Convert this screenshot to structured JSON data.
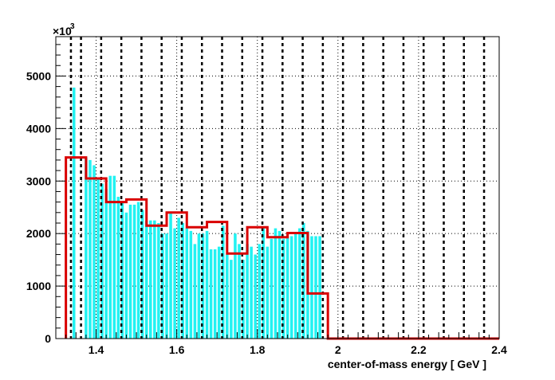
{
  "chart_data": {
    "type": "bar",
    "title": "",
    "xlabel": "center-of-mass energy [ GeV ]",
    "ylabel": "",
    "multiplier_base": "×10",
    "multiplier_exponent": "3",
    "xlim": [
      1.3,
      2.4
    ],
    "ylim": [
      0,
      5750
    ],
    "xticks": [
      1.4,
      1.6,
      1.8,
      2,
      2.2,
      2.4
    ],
    "xtick_labels": [
      "1.4",
      "1.6",
      "1.8",
      "2",
      "2.2",
      "2.4"
    ],
    "yticks": [
      0,
      1000,
      2000,
      3000,
      4000,
      5000
    ],
    "ytick_labels": [
      "0",
      "1000",
      "2000",
      "3000",
      "4000",
      "5000"
    ],
    "grid": true,
    "colors": {
      "fine_bars": "#22f2f2",
      "step_line": "#d90000",
      "grid": "#000000",
      "axis": "#000000"
    },
    "series": [
      {
        "kind": "fine-bars",
        "bin_width": 0.01,
        "x": [
          1.345,
          1.375,
          1.385,
          1.395,
          1.405,
          1.415,
          1.425,
          1.435,
          1.445,
          1.455,
          1.465,
          1.475,
          1.485,
          1.495,
          1.505,
          1.515,
          1.525,
          1.535,
          1.545,
          1.555,
          1.565,
          1.575,
          1.585,
          1.595,
          1.605,
          1.615,
          1.625,
          1.635,
          1.645,
          1.655,
          1.665,
          1.675,
          1.685,
          1.695,
          1.705,
          1.715,
          1.725,
          1.735,
          1.745,
          1.755,
          1.765,
          1.775,
          1.785,
          1.795,
          1.805,
          1.815,
          1.825,
          1.835,
          1.845,
          1.855,
          1.865,
          1.875,
          1.885,
          1.895,
          1.905,
          1.915,
          1.925,
          1.935,
          1.945,
          1.955
        ],
        "values": [
          4780,
          3450,
          3400,
          3300,
          3050,
          2950,
          2850,
          3100,
          3100,
          2700,
          2600,
          2400,
          2550,
          2550,
          2600,
          2450,
          2250,
          2250,
          2250,
          2200,
          2000,
          2000,
          2400,
          2100,
          2300,
          2200,
          2100,
          2050,
          1800,
          2000,
          2000,
          2050,
          1700,
          1700,
          1750,
          2150,
          1600,
          1500,
          2000,
          1800,
          1500,
          1800,
          1750,
          1600,
          1800,
          2100,
          1750,
          1900,
          2100,
          2050,
          1900,
          1950,
          1950,
          2000,
          2100,
          2200,
          2050,
          1950,
          1950,
          1950
        ]
      },
      {
        "kind": "step",
        "bin_edges": [
          1.325,
          1.375,
          1.425,
          1.475,
          1.525,
          1.575,
          1.625,
          1.675,
          1.725,
          1.775,
          1.825,
          1.875,
          1.925,
          1.975,
          2.025,
          2.075,
          2.125,
          2.175,
          2.225,
          2.275,
          2.325,
          2.375,
          2.4
        ],
        "values": [
          3450,
          3050,
          2600,
          2650,
          2150,
          2400,
          2120,
          2220,
          1620,
          2120,
          1930,
          2010,
          860,
          0,
          0,
          0,
          0,
          0,
          0,
          0,
          0,
          0
        ]
      }
    ],
    "vertical_dotted_lines_at": [
      1.3375,
      1.3625,
      1.4125,
      1.4625,
      1.5125,
      1.5625,
      1.6125,
      1.6625,
      1.7125,
      1.7625,
      1.8125,
      1.8625,
      1.9125,
      1.9625,
      2.0125,
      2.0625,
      2.1125,
      2.1625,
      2.2125,
      2.2625,
      2.3125,
      2.3625
    ]
  }
}
